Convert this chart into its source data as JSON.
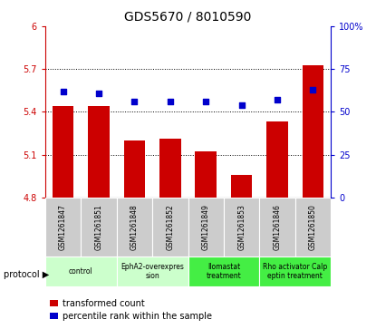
{
  "title": "GDS5670 / 8010590",
  "samples": [
    "GSM1261847",
    "GSM1261851",
    "GSM1261848",
    "GSM1261852",
    "GSM1261849",
    "GSM1261853",
    "GSM1261846",
    "GSM1261850"
  ],
  "transformed_count": [
    5.44,
    5.44,
    5.2,
    5.21,
    5.12,
    4.96,
    5.33,
    5.73
  ],
  "percentile_rank": [
    62,
    61,
    56,
    56,
    56,
    54,
    57,
    63
  ],
  "ylim_left": [
    4.8,
    6.0
  ],
  "ylim_right": [
    0,
    100
  ],
  "yticks_left": [
    4.8,
    5.1,
    5.4,
    5.7,
    6.0
  ],
  "yticks_right": [
    0,
    25,
    50,
    75,
    100
  ],
  "ytick_labels_left": [
    "4.8",
    "5.1",
    "5.4",
    "5.7",
    "6"
  ],
  "ytick_labels_right": [
    "0",
    "25",
    "50",
    "75",
    "100%"
  ],
  "bar_color": "#cc0000",
  "dot_color": "#0000cc",
  "protocols": [
    {
      "label": "control",
      "span": [
        0,
        2
      ],
      "color": "#ccffcc"
    },
    {
      "label": "EphA2-overexpres\nsion",
      "span": [
        2,
        4
      ],
      "color": "#ccffcc"
    },
    {
      "label": "Ilomastat\ntreatment",
      "span": [
        4,
        6
      ],
      "color": "#44ee44"
    },
    {
      "label": "Rho activator Calp\neptin treatment",
      "span": [
        6,
        8
      ],
      "color": "#44ee44"
    }
  ],
  "protocol_label": "protocol",
  "legend_bar_label": "transformed count",
  "legend_dot_label": "percentile rank within the sample",
  "background_color": "#ffffff",
  "sample_bg_color": "#cccccc"
}
